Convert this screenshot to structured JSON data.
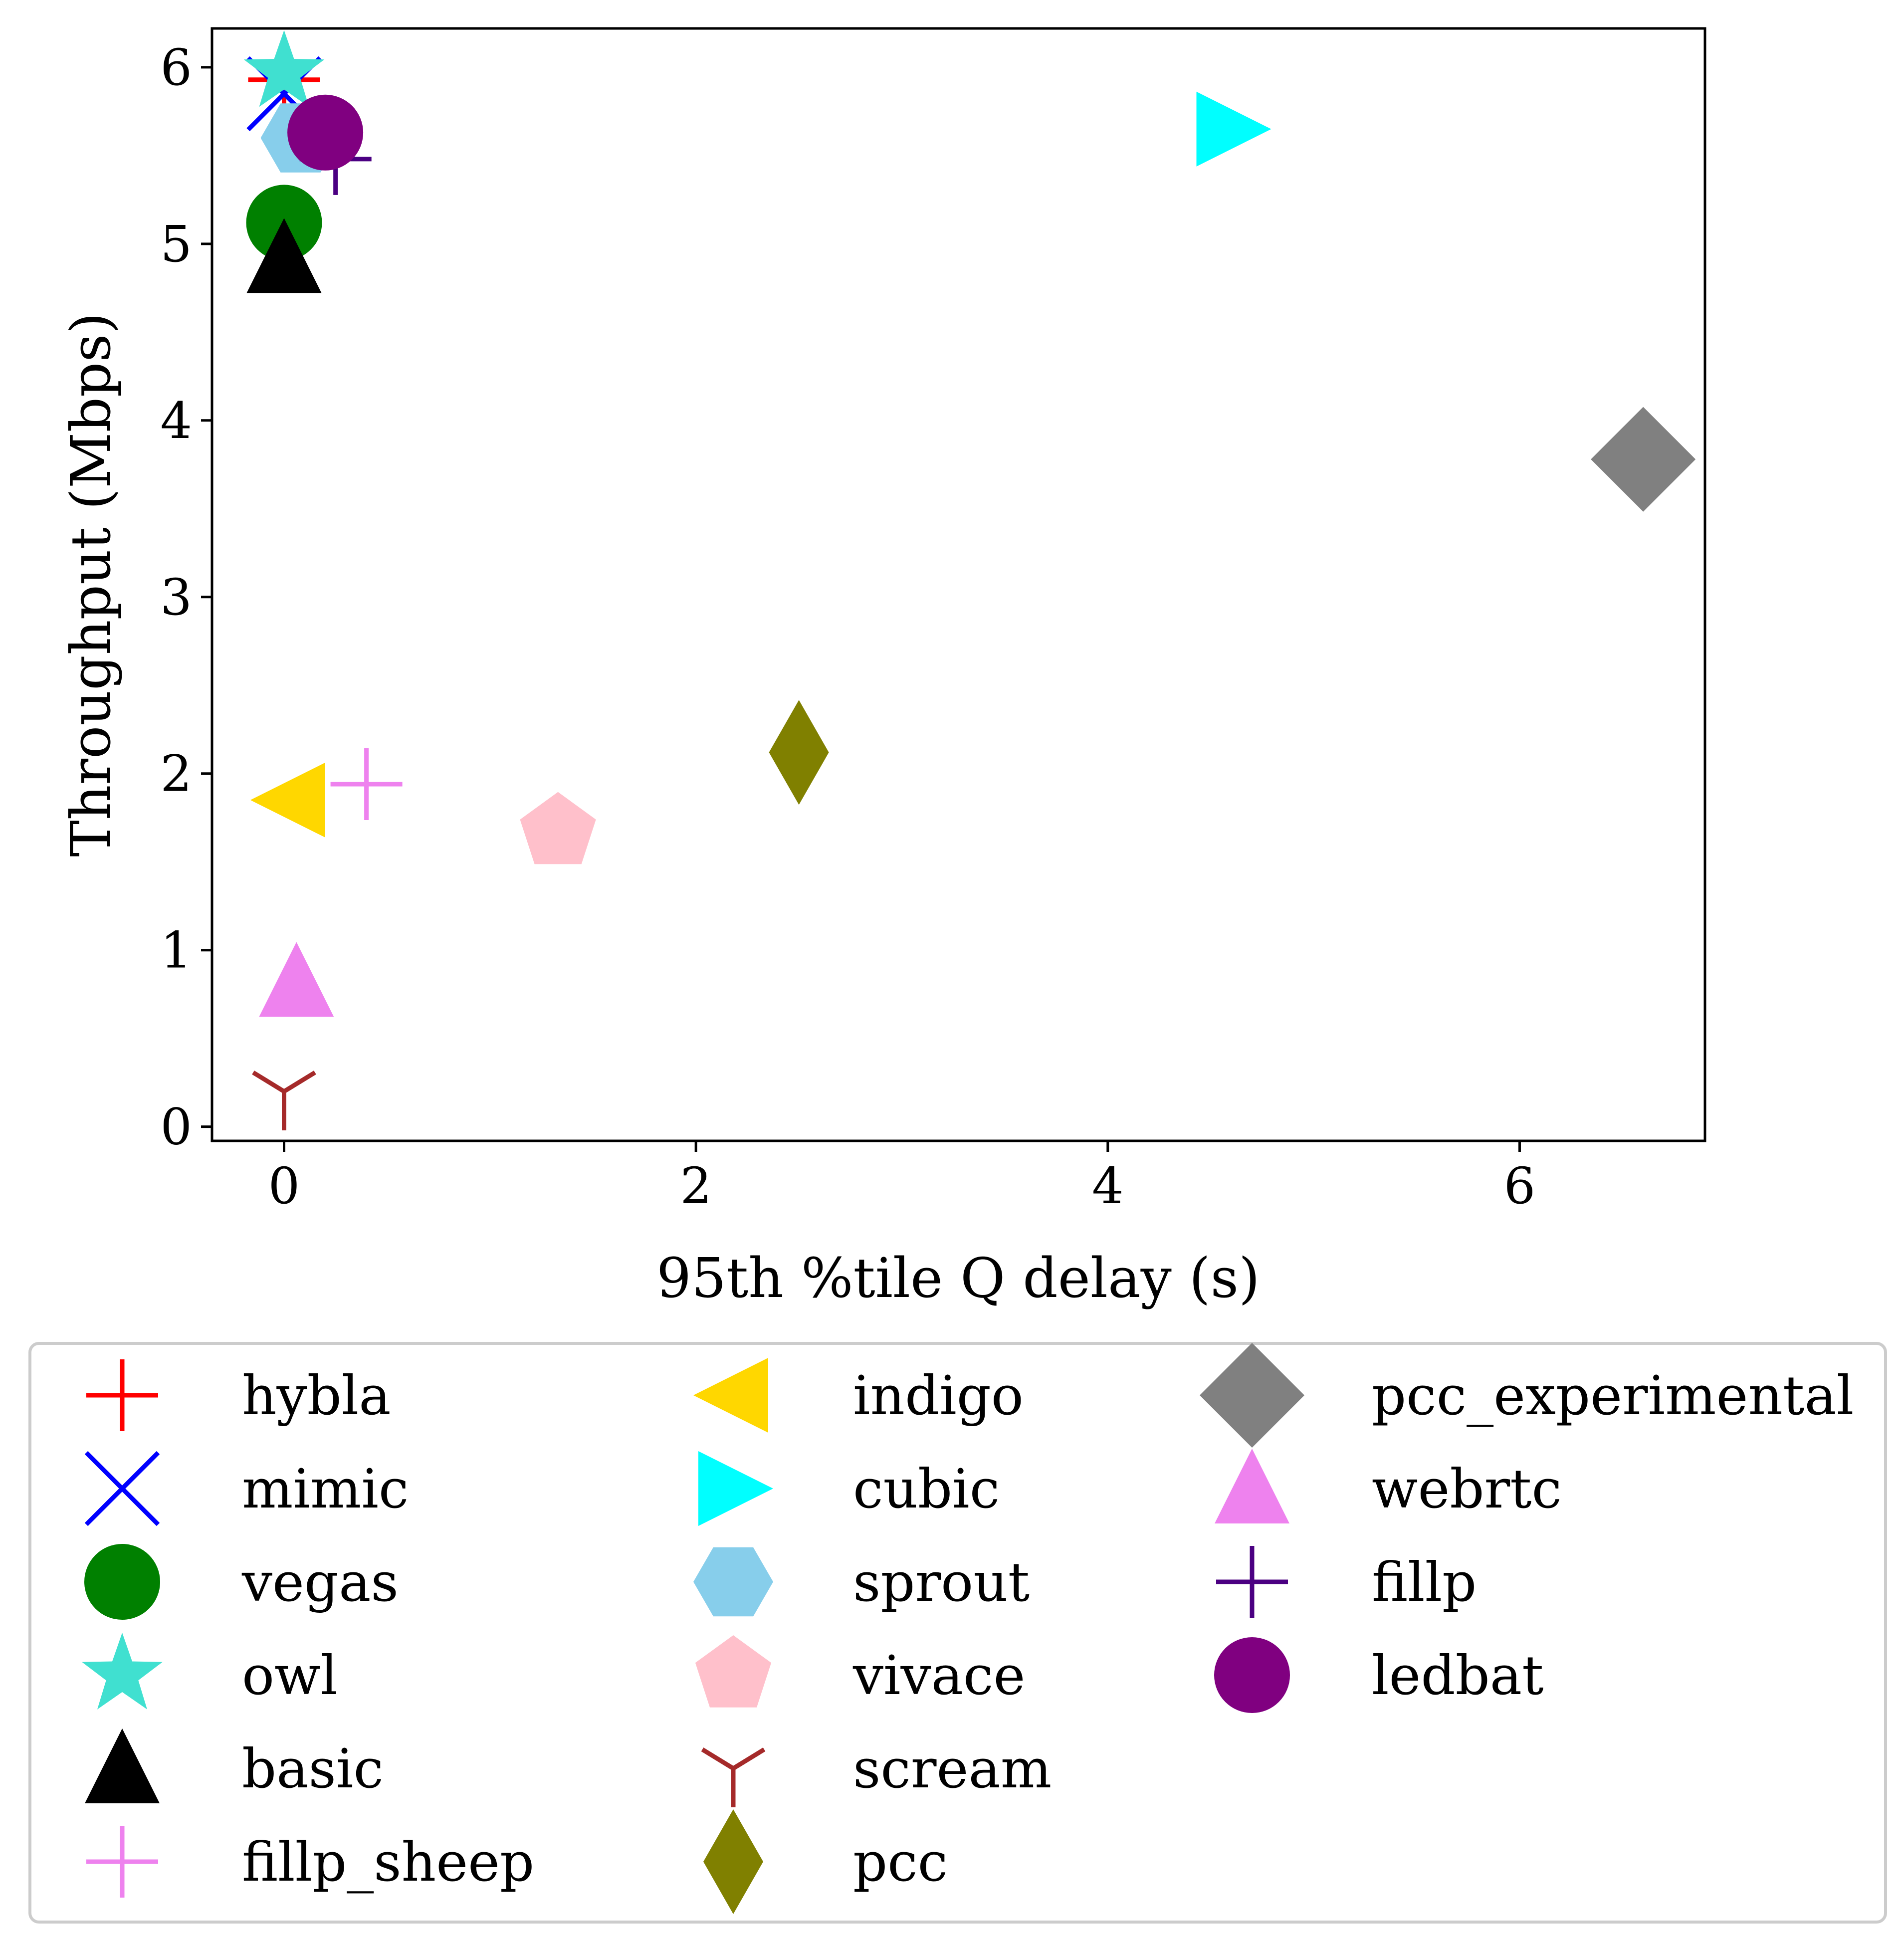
{
  "chart_data": {
    "type": "scatter",
    "title": "",
    "xlabel": "95th %tile Q delay (s)",
    "ylabel": "Throughput (Mbps)",
    "xlim": [
      -0.35,
      6.9
    ],
    "ylim": [
      -0.08,
      6.22
    ],
    "xticks": [
      0,
      2,
      4,
      6
    ],
    "yticks": [
      0,
      1,
      2,
      3,
      4,
      5,
      6
    ],
    "grid": false,
    "legend_position": "below",
    "legend_columns": 3,
    "series": [
      {
        "name": "hybla",
        "marker": "plus",
        "color": "#ff0000",
        "x": 0.0,
        "y": 5.93
      },
      {
        "name": "mimic",
        "marker": "x",
        "color": "#0000ff",
        "x": 0.0,
        "y": 5.85
      },
      {
        "name": "vegas",
        "marker": "circle",
        "color": "#008000",
        "x": 0.0,
        "y": 5.12
      },
      {
        "name": "owl",
        "marker": "star",
        "color": "#40e0d0",
        "x": 0.0,
        "y": 5.97
      },
      {
        "name": "basic",
        "marker": "triangle-up",
        "color": "#000000",
        "x": 0.0,
        "y": 4.92
      },
      {
        "name": "fillp_sheep",
        "marker": "plus",
        "color": "#ee82ee",
        "x": 0.4,
        "y": 1.94
      },
      {
        "name": "indigo",
        "marker": "triangle-left",
        "color": "#ffd700",
        "x": 0.03,
        "y": 1.85
      },
      {
        "name": "cubic",
        "marker": "triangle-right",
        "color": "#00ffff",
        "x": 4.6,
        "y": 5.65
      },
      {
        "name": "sprout",
        "marker": "hexagon",
        "color": "#87ceeb",
        "x": 0.08,
        "y": 5.6
      },
      {
        "name": "vivace",
        "marker": "pentagon",
        "color": "#ffc0cb",
        "x": 1.33,
        "y": 1.67
      },
      {
        "name": "scream",
        "marker": "tri-down",
        "color": "#a52a2a",
        "x": 0.0,
        "y": 0.2
      },
      {
        "name": "pcc",
        "marker": "thin-diamond",
        "color": "#808000",
        "x": 2.5,
        "y": 2.12
      },
      {
        "name": "pcc_experimental",
        "marker": "diamond",
        "color": "#808080",
        "x": 6.6,
        "y": 3.78
      },
      {
        "name": "webrtc",
        "marker": "triangle-up",
        "color": "#ee82ee",
        "x": 0.06,
        "y": 0.82
      },
      {
        "name": "fillp",
        "marker": "plus",
        "color": "#4b0082",
        "x": 0.25,
        "y": 5.48
      },
      {
        "name": "ledbat",
        "marker": "circle",
        "color": "#800080",
        "x": 0.2,
        "y": 5.63
      }
    ]
  }
}
